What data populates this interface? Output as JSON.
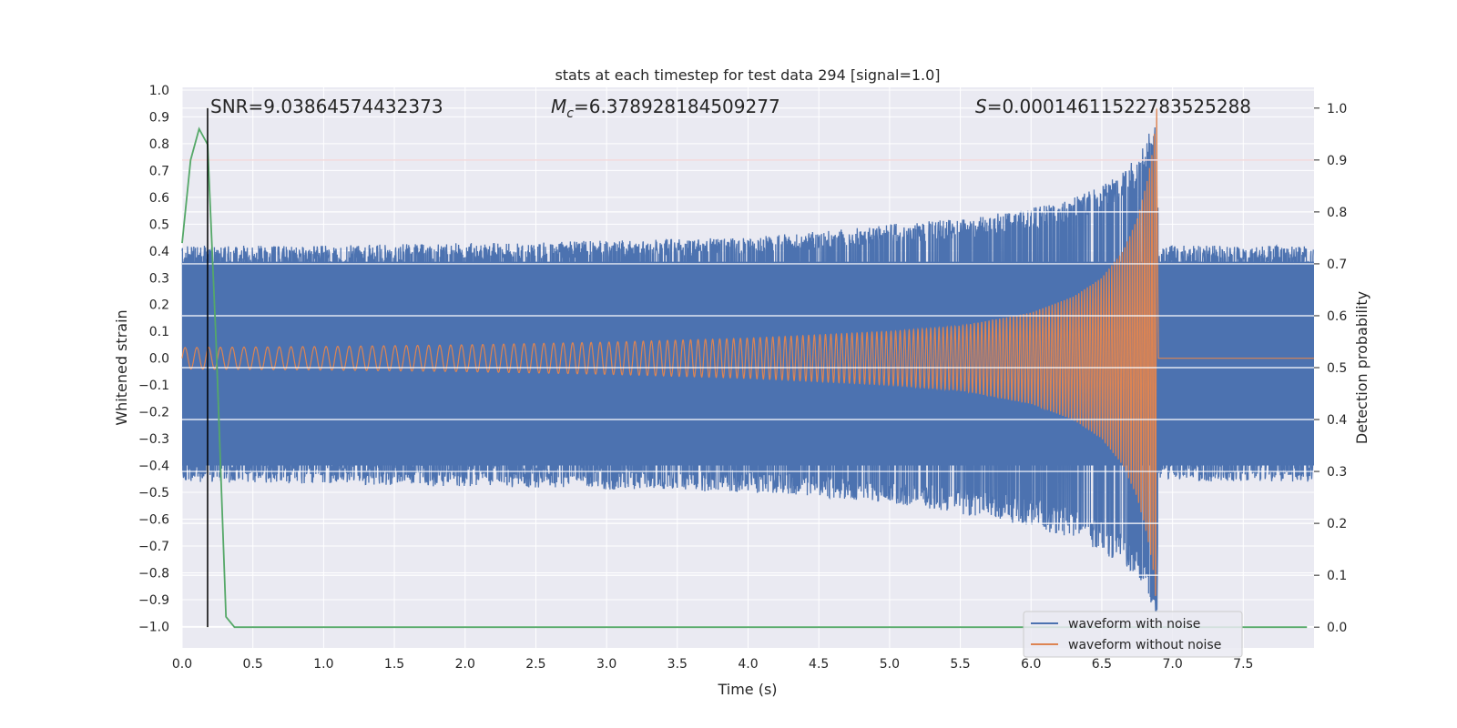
{
  "chart_data": {
    "type": "line",
    "title": "stats at each timestep for test data 294 [signal=1.0]",
    "xlabel": "Time (s)",
    "ylabel_left": "Whitened strain",
    "ylabel_right": "Detection probability",
    "xlim": [
      0.0,
      8.0
    ],
    "ylim_left": [
      -1.08,
      1.01
    ],
    "ylim_right": [
      -0.04,
      1.04
    ],
    "x_ticks": [
      0.0,
      0.5,
      1.0,
      1.5,
      2.0,
      2.5,
      3.0,
      3.5,
      4.0,
      4.5,
      5.0,
      5.5,
      6.0,
      6.5,
      7.0,
      7.5
    ],
    "x_tick_labels": [
      "0.0",
      "0.5",
      "1.0",
      "1.5",
      "2.0",
      "2.5",
      "3.0",
      "3.5",
      "4.0",
      "4.5",
      "5.0",
      "5.5",
      "6.0",
      "6.5",
      "7.0",
      "7.5"
    ],
    "y_left_ticks": [
      1.0,
      0.9,
      0.8,
      0.7,
      0.6,
      0.5,
      0.4,
      0.3,
      0.2,
      0.1,
      0.0,
      -0.1,
      -0.2,
      -0.3,
      -0.4,
      -0.5,
      -0.6,
      -0.7,
      -0.8,
      -0.9,
      -1.0
    ],
    "y_left_tick_labels": [
      "1.0",
      "0.9",
      "0.8",
      "0.7",
      "0.6",
      "0.5",
      "0.4",
      "0.3",
      "0.2",
      "0.1",
      "0.0",
      "−0.1",
      "−0.2",
      "−0.3",
      "−0.4",
      "−0.5",
      "−0.6",
      "−0.7",
      "−0.8",
      "−0.9",
      "−1.0"
    ],
    "y_right_ticks": [
      1.0,
      0.9,
      0.8,
      0.7,
      0.6,
      0.5,
      0.4,
      0.3,
      0.2,
      0.1,
      0.0
    ],
    "y_right_tick_labels": [
      "1.0",
      "0.9",
      "0.8",
      "0.7",
      "0.6",
      "0.5",
      "0.4",
      "0.3",
      "0.2",
      "0.1",
      "0.0"
    ],
    "grid": true,
    "background": "#eaeaf2",
    "annotations": {
      "snr": "SNR=9.03864574432373",
      "mc_symbol": "M",
      "mc_sub": "c",
      "mc_value": "=6.378928184509277",
      "s_symbol": "S",
      "s_value": "=0.00014611522783525288"
    },
    "threshold": {
      "value": 0.9,
      "axis": "right",
      "color": "#c44e52"
    },
    "detection_time": {
      "x": 0.18,
      "color": "#000000"
    },
    "series": [
      {
        "name": "waveform with noise",
        "color": "#4c72b0",
        "axis": "left",
        "envelope": {
          "x": [
            0.0,
            1.0,
            2.0,
            3.0,
            4.0,
            5.0,
            5.5,
            6.0,
            6.3,
            6.5,
            6.65,
            6.75,
            6.82,
            6.86,
            6.89,
            6.9,
            7.0,
            8.0
          ],
          "max": [
            0.42,
            0.42,
            0.43,
            0.44,
            0.45,
            0.5,
            0.52,
            0.56,
            0.6,
            0.64,
            0.7,
            0.75,
            0.82,
            0.9,
            0.95,
            0.42,
            0.42,
            0.42
          ],
          "min": [
            -0.46,
            -0.47,
            -0.48,
            -0.49,
            -0.5,
            -0.54,
            -0.58,
            -0.63,
            -0.68,
            -0.72,
            -0.78,
            -0.82,
            -0.88,
            -0.93,
            -0.97,
            -0.46,
            -0.46,
            -0.46
          ]
        }
      },
      {
        "name": "waveform without noise",
        "color": "#dd8452",
        "axis": "left",
        "envelope": {
          "x": [
            0.0,
            1.0,
            2.0,
            3.0,
            4.0,
            5.0,
            5.5,
            6.0,
            6.3,
            6.5,
            6.65,
            6.75,
            6.82,
            6.86,
            6.89,
            6.9,
            8.0
          ],
          "amp": [
            0.04,
            0.044,
            0.05,
            0.06,
            0.075,
            0.1,
            0.12,
            0.17,
            0.23,
            0.3,
            0.4,
            0.52,
            0.66,
            0.78,
            0.95,
            0.0,
            0.0
          ],
          "bursts_per_second_start": 12,
          "bursts_per_second_end": 60
        },
        "post_merger_value": 0.0
      },
      {
        "name": "detection probability",
        "color": "#55a868",
        "axis": "right",
        "x": [
          0.0,
          0.06,
          0.12,
          0.18,
          0.24,
          0.31,
          0.37,
          0.5,
          1.0,
          2.0,
          3.0,
          4.0,
          5.0,
          6.0,
          7.0,
          7.95
        ],
        "y": [
          0.74,
          0.9,
          0.96,
          0.93,
          0.55,
          0.02,
          0.0,
          0.0,
          0.0,
          0.0,
          0.0,
          0.0,
          0.0,
          0.0,
          0.0,
          0.0
        ]
      }
    ],
    "legend": {
      "placement": "lower-right",
      "entries": [
        {
          "label": "waveform with noise",
          "color": "#4c72b0"
        },
        {
          "label": "waveform without noise",
          "color": "#dd8452"
        }
      ]
    }
  }
}
